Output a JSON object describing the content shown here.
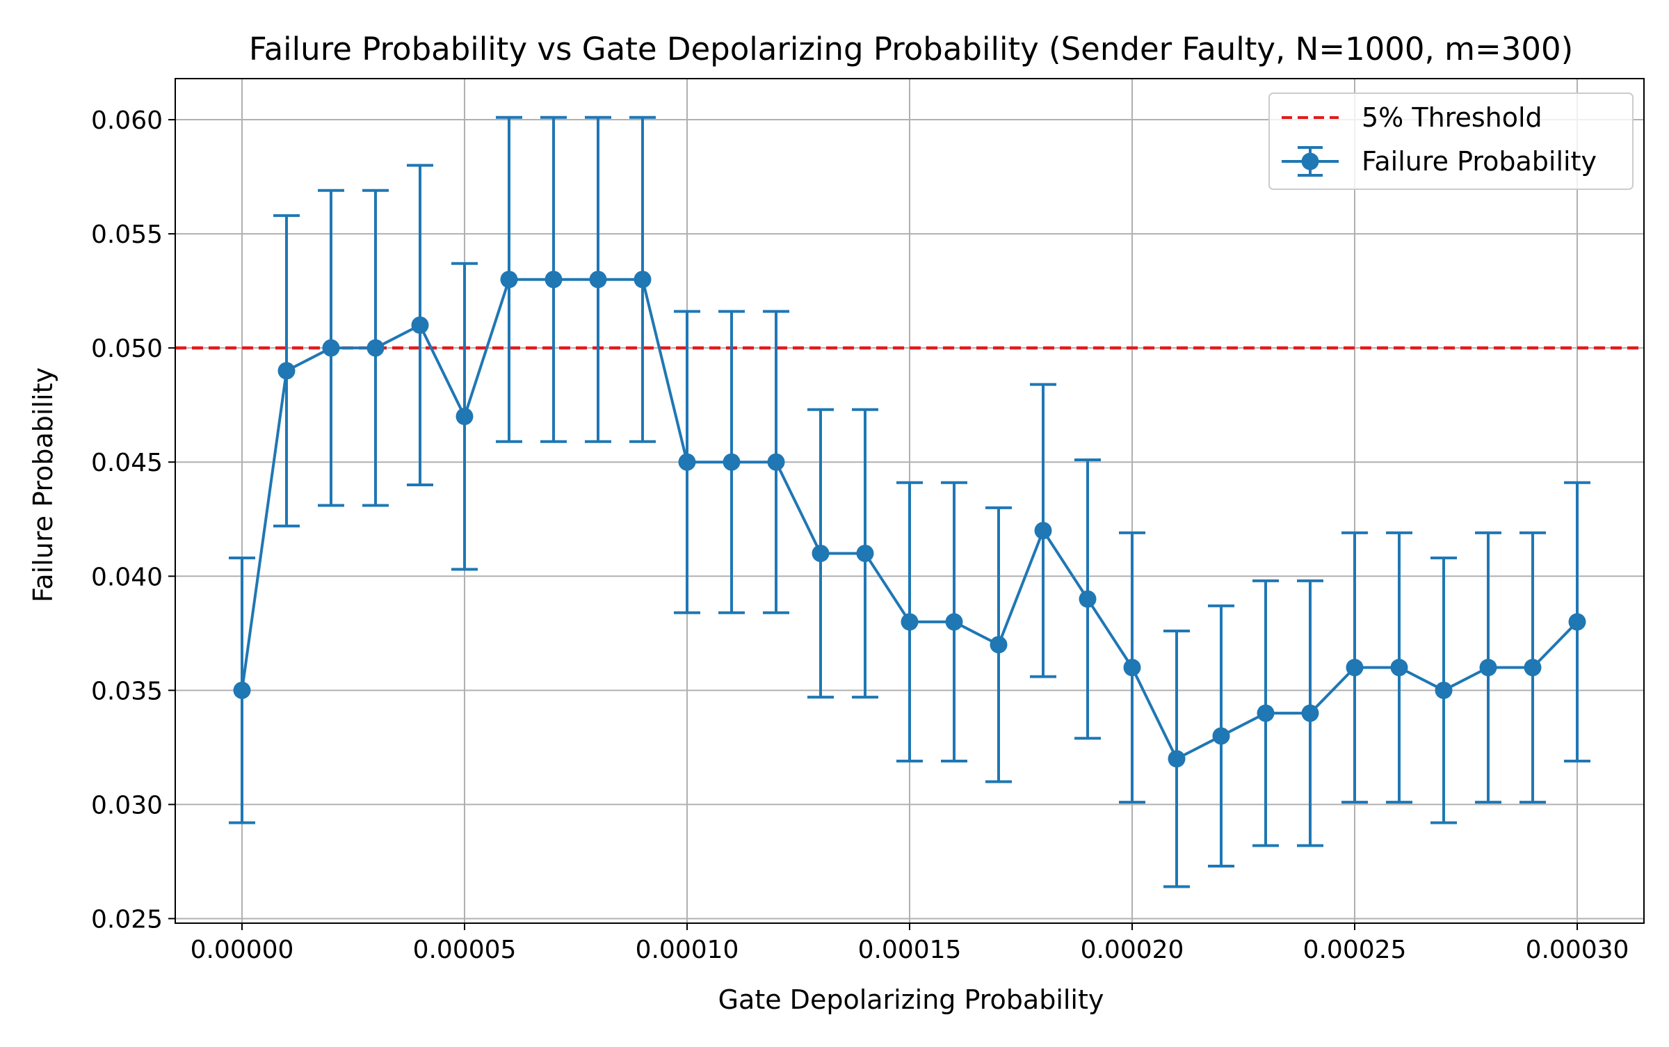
{
  "chart_data": {
    "type": "line",
    "title": "Failure Probability vs Gate Depolarizing Probability (Sender Faulty, N=1000, m=300)",
    "xlabel": "Gate Depolarizing Probability",
    "ylabel": "Failure Probability",
    "xlim": [
      -1.5e-05,
      0.000315
    ],
    "ylim": [
      0.0248,
      0.0618
    ],
    "xticks": [
      0.0,
      5e-05,
      0.0001,
      0.00015,
      0.0002,
      0.00025,
      0.0003
    ],
    "xtick_labels": [
      "0.00000",
      "0.00005",
      "0.00010",
      "0.00015",
      "0.00020",
      "0.00025",
      "0.00030"
    ],
    "yticks": [
      0.025,
      0.03,
      0.035,
      0.04,
      0.045,
      0.05,
      0.055,
      0.06
    ],
    "ytick_labels": [
      "0.025",
      "0.030",
      "0.035",
      "0.040",
      "0.045",
      "0.050",
      "0.055",
      "0.060"
    ],
    "grid": true,
    "legend_position": "top-right",
    "threshold": {
      "name": "5% Threshold",
      "value": 0.05,
      "color": "#e41a1c",
      "style": "dashed"
    },
    "series": [
      {
        "name": "Failure Probability",
        "color": "#1f77b4",
        "marker": "circle",
        "error_bars": true,
        "x": [
          0.0,
          1e-05,
          2e-05,
          3e-05,
          4e-05,
          5e-05,
          6e-05,
          7e-05,
          8e-05,
          9e-05,
          0.0001,
          0.00011,
          0.00012,
          0.00013,
          0.00014,
          0.00015,
          0.00016,
          0.00017,
          0.00018,
          0.00019,
          0.0002,
          0.00021,
          0.00022,
          0.00023,
          0.00024,
          0.00025,
          0.00026,
          0.00027,
          0.00028,
          0.00029,
          0.0003
        ],
        "y": [
          0.035,
          0.049,
          0.05,
          0.05,
          0.051,
          0.047,
          0.053,
          0.053,
          0.053,
          0.053,
          0.045,
          0.045,
          0.045,
          0.041,
          0.041,
          0.038,
          0.038,
          0.037,
          0.042,
          0.039,
          0.036,
          0.032,
          0.033,
          0.034,
          0.034,
          0.036,
          0.036,
          0.035,
          0.036,
          0.036,
          0.038
        ],
        "yerr": [
          0.0058,
          0.0068,
          0.0069,
          0.0069,
          0.007,
          0.0067,
          0.0071,
          0.0071,
          0.0071,
          0.0071,
          0.0066,
          0.0066,
          0.0066,
          0.0063,
          0.0063,
          0.0061,
          0.0061,
          0.006,
          0.0064,
          0.0061,
          0.0059,
          0.0056,
          0.0057,
          0.0058,
          0.0058,
          0.0059,
          0.0059,
          0.0058,
          0.0059,
          0.0059,
          0.0061
        ]
      }
    ]
  }
}
